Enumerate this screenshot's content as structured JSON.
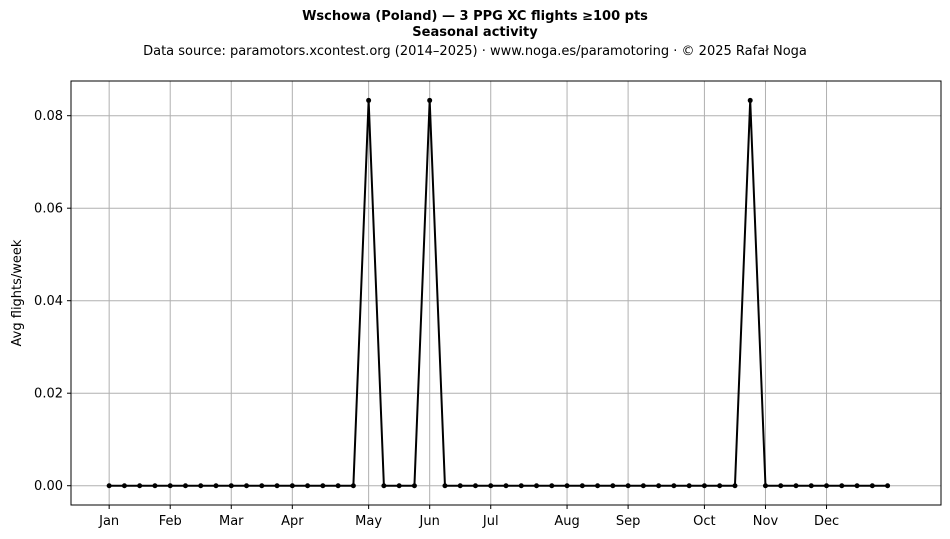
{
  "title_line1": "Wschowa (Poland)  —  3 PPG XC flights ≥100 pts",
  "title_line2": "Seasonal activity",
  "subtitle": "Data source: paramotors.xcontest.org (2014–2025)  ·  www.noga.es/paramotoring  ·  © 2025 Rafał Noga",
  "chart_data": {
    "type": "line",
    "title": "Wschowa (Poland)  —  3 PPG XC flights ≥100 pts",
    "subtitle": "Seasonal activity",
    "xlabel": "",
    "ylabel": "Avg flights/week",
    "x": [
      1,
      2,
      3,
      4,
      5,
      6,
      7,
      8,
      9,
      10,
      11,
      12,
      13,
      14,
      15,
      16,
      17,
      18,
      19,
      20,
      21,
      22,
      23,
      24,
      25,
      26,
      27,
      28,
      29,
      30,
      31,
      32,
      33,
      34,
      35,
      36,
      37,
      38,
      39,
      40,
      41,
      42,
      43,
      44,
      45,
      46,
      47,
      48,
      49,
      50,
      51,
      52
    ],
    "y": [
      0,
      0,
      0,
      0,
      0,
      0,
      0,
      0,
      0,
      0,
      0,
      0,
      0,
      0,
      0,
      0,
      0,
      0.0833,
      0,
      0,
      0,
      0.0833,
      0,
      0,
      0,
      0,
      0,
      0,
      0,
      0,
      0,
      0,
      0,
      0,
      0,
      0,
      0,
      0,
      0,
      0,
      0,
      0,
      0.0833,
      0,
      0,
      0,
      0,
      0,
      0,
      0,
      0,
      0
    ],
    "xticks": [
      {
        "label": "Jan",
        "x": 1
      },
      {
        "label": "Feb",
        "x": 5
      },
      {
        "label": "Mar",
        "x": 9
      },
      {
        "label": "Apr",
        "x": 13
      },
      {
        "label": "May",
        "x": 18
      },
      {
        "label": "Jun",
        "x": 22
      },
      {
        "label": "Jul",
        "x": 26
      },
      {
        "label": "Aug",
        "x": 31
      },
      {
        "label": "Sep",
        "x": 35
      },
      {
        "label": "Oct",
        "x": 40
      },
      {
        "label": "Nov",
        "x": 44
      },
      {
        "label": "Dec",
        "x": 48
      }
    ],
    "yticks": [
      0,
      0.02,
      0.04,
      0.06,
      0.08
    ],
    "ytick_labels": [
      "0.00",
      "0.02",
      "0.04",
      "0.06",
      "0.08"
    ],
    "xlim": [
      -1.5,
      55.5
    ],
    "ylim": [
      -0.00417,
      0.0875
    ],
    "grid": true,
    "line_color": "#000000",
    "grid_color": "#b0b0b0"
  }
}
